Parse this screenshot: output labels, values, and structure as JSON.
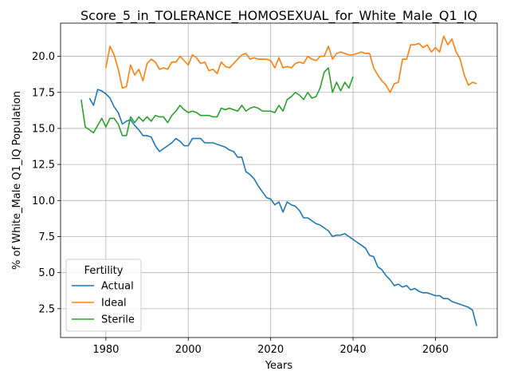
{
  "chart_data": {
    "type": "line",
    "title": "Score_5_in_TOLERANCE_HOMOSEXUAL_for_White_Male_Q1_IQ",
    "xlabel": "Years",
    "ylabel": "% of White_Male Q1_IQ Population",
    "xlim": [
      1969,
      2075
    ],
    "ylim": [
      0.5,
      22.3
    ],
    "xticks": [
      1980,
      2000,
      2020,
      2040,
      2060
    ],
    "yticks": [
      2.5,
      5.0,
      7.5,
      10.0,
      12.5,
      15.0,
      17.5,
      20.0
    ],
    "grid": true,
    "legend": {
      "title": "Fertility",
      "position": "lower-left"
    },
    "series": [
      {
        "name": "Actual",
        "color": "#1f77b4",
        "points": [
          [
            1976,
            17.1
          ],
          [
            1977,
            16.6
          ],
          [
            1978,
            17.7
          ],
          [
            1979,
            17.6
          ],
          [
            1980,
            17.4
          ],
          [
            1981,
            17.1
          ],
          [
            1982,
            16.5
          ],
          [
            1983,
            16.1
          ],
          [
            1984,
            15.3
          ],
          [
            1985,
            15.5
          ],
          [
            1986,
            15.6
          ],
          [
            1987,
            15.2
          ],
          [
            1988,
            14.9
          ],
          [
            1989,
            14.5
          ],
          [
            1990,
            14.5
          ],
          [
            1991,
            14.4
          ],
          [
            1992,
            13.8
          ],
          [
            1993,
            13.4
          ],
          [
            1994,
            13.6
          ],
          [
            1995,
            13.8
          ],
          [
            1996,
            14.0
          ],
          [
            1997,
            14.3
          ],
          [
            1998,
            14.1
          ],
          [
            1999,
            13.8
          ],
          [
            2000,
            13.8
          ],
          [
            2001,
            14.3
          ],
          [
            2002,
            14.3
          ],
          [
            2003,
            14.3
          ],
          [
            2004,
            14.0
          ],
          [
            2005,
            14.0
          ],
          [
            2006,
            14.0
          ],
          [
            2007,
            13.9
          ],
          [
            2008,
            13.8
          ],
          [
            2009,
            13.7
          ],
          [
            2010,
            13.5
          ],
          [
            2011,
            13.4
          ],
          [
            2012,
            13.0
          ],
          [
            2013,
            13.0
          ],
          [
            2014,
            12.0
          ],
          [
            2015,
            11.8
          ],
          [
            2016,
            11.5
          ],
          [
            2017,
            11.0
          ],
          [
            2018,
            10.6
          ],
          [
            2019,
            10.2
          ],
          [
            2020,
            10.1
          ],
          [
            2021,
            9.7
          ],
          [
            2022,
            9.9
          ],
          [
            2023,
            9.2
          ],
          [
            2024,
            9.9
          ],
          [
            2025,
            9.7
          ],
          [
            2026,
            9.6
          ],
          [
            2027,
            9.3
          ],
          [
            2028,
            8.8
          ],
          [
            2029,
            8.8
          ],
          [
            2030,
            8.6
          ],
          [
            2031,
            8.4
          ],
          [
            2032,
            8.3
          ],
          [
            2033,
            8.1
          ],
          [
            2034,
            7.9
          ],
          [
            2035,
            7.5
          ],
          [
            2036,
            7.6
          ],
          [
            2037,
            7.6
          ],
          [
            2038,
            7.7
          ],
          [
            2039,
            7.5
          ],
          [
            2040,
            7.3
          ],
          [
            2041,
            7.1
          ],
          [
            2042,
            6.9
          ],
          [
            2043,
            6.7
          ],
          [
            2044,
            6.2
          ],
          [
            2045,
            6.1
          ],
          [
            2046,
            5.4
          ],
          [
            2047,
            5.2
          ],
          [
            2048,
            4.8
          ],
          [
            2049,
            4.5
          ],
          [
            2050,
            4.1
          ],
          [
            2051,
            4.2
          ],
          [
            2052,
            4.0
          ],
          [
            2053,
            4.1
          ],
          [
            2054,
            3.8
          ],
          [
            2055,
            3.9
          ],
          [
            2056,
            3.7
          ],
          [
            2057,
            3.6
          ],
          [
            2058,
            3.6
          ],
          [
            2059,
            3.5
          ],
          [
            2060,
            3.4
          ],
          [
            2061,
            3.4
          ],
          [
            2062,
            3.2
          ],
          [
            2063,
            3.2
          ],
          [
            2064,
            3.0
          ],
          [
            2065,
            2.9
          ],
          [
            2066,
            2.8
          ],
          [
            2067,
            2.7
          ],
          [
            2068,
            2.6
          ],
          [
            2069,
            2.4
          ],
          [
            2070,
            1.3
          ]
        ]
      },
      {
        "name": "Ideal",
        "color": "#ff7f0e",
        "points": [
          [
            1980,
            19.2
          ],
          [
            1981,
            20.7
          ],
          [
            1982,
            20.1
          ],
          [
            1983,
            19.1
          ],
          [
            1984,
            17.8
          ],
          [
            1985,
            17.9
          ],
          [
            1986,
            19.4
          ],
          [
            1987,
            18.7
          ],
          [
            1988,
            19.1
          ],
          [
            1989,
            18.3
          ],
          [
            1990,
            19.5
          ],
          [
            1991,
            19.8
          ],
          [
            1992,
            19.6
          ],
          [
            1993,
            19.1
          ],
          [
            1994,
            19.2
          ],
          [
            1995,
            19.1
          ],
          [
            1996,
            19.6
          ],
          [
            1997,
            19.6
          ],
          [
            1998,
            20.0
          ],
          [
            1999,
            19.7
          ],
          [
            2000,
            19.4
          ],
          [
            2001,
            20.1
          ],
          [
            2002,
            19.9
          ],
          [
            2003,
            19.5
          ],
          [
            2004,
            19.6
          ],
          [
            2005,
            19.0
          ],
          [
            2006,
            19.1
          ],
          [
            2007,
            18.8
          ],
          [
            2008,
            19.6
          ],
          [
            2009,
            19.3
          ],
          [
            2010,
            19.2
          ],
          [
            2011,
            19.5
          ],
          [
            2012,
            19.8
          ],
          [
            2013,
            20.1
          ],
          [
            2014,
            20.2
          ],
          [
            2015,
            19.8
          ],
          [
            2016,
            19.9
          ],
          [
            2017,
            19.8
          ],
          [
            2018,
            19.8
          ],
          [
            2019,
            19.8
          ],
          [
            2020,
            19.7
          ],
          [
            2021,
            19.2
          ],
          [
            2022,
            19.9
          ],
          [
            2023,
            19.2
          ],
          [
            2024,
            19.3
          ],
          [
            2025,
            19.2
          ],
          [
            2026,
            19.5
          ],
          [
            2027,
            19.6
          ],
          [
            2028,
            19.5
          ],
          [
            2029,
            20.0
          ],
          [
            2030,
            19.8
          ],
          [
            2031,
            19.7
          ],
          [
            2032,
            20.0
          ],
          [
            2033,
            20.0
          ],
          [
            2034,
            20.7
          ],
          [
            2035,
            19.8
          ],
          [
            2036,
            20.2
          ],
          [
            2037,
            20.3
          ],
          [
            2038,
            20.2
          ],
          [
            2039,
            20.1
          ],
          [
            2040,
            20.1
          ],
          [
            2041,
            20.2
          ],
          [
            2042,
            20.3
          ],
          [
            2043,
            20.2
          ],
          [
            2044,
            20.2
          ],
          [
            2045,
            19.2
          ],
          [
            2046,
            18.7
          ],
          [
            2047,
            18.3
          ],
          [
            2048,
            18.0
          ],
          [
            2049,
            17.5
          ],
          [
            2050,
            18.1
          ],
          [
            2051,
            18.2
          ],
          [
            2052,
            19.8
          ],
          [
            2053,
            19.8
          ],
          [
            2054,
            20.8
          ],
          [
            2055,
            20.8
          ],
          [
            2056,
            20.9
          ],
          [
            2057,
            20.6
          ],
          [
            2058,
            20.8
          ],
          [
            2059,
            20.3
          ],
          [
            2060,
            20.6
          ],
          [
            2061,
            20.3
          ],
          [
            2062,
            21.4
          ],
          [
            2063,
            20.8
          ],
          [
            2064,
            21.2
          ],
          [
            2065,
            20.3
          ],
          [
            2066,
            19.8
          ],
          [
            2067,
            18.7
          ],
          [
            2068,
            18.0
          ],
          [
            2069,
            18.2
          ],
          [
            2070,
            18.1
          ]
        ]
      },
      {
        "name": "Sterile",
        "color": "#2ca02c",
        "points": [
          [
            1974,
            17.0
          ],
          [
            1975,
            15.1
          ],
          [
            1976,
            14.9
          ],
          [
            1977,
            14.7
          ],
          [
            1978,
            15.2
          ],
          [
            1979,
            15.7
          ],
          [
            1980,
            15.1
          ],
          [
            1981,
            15.7
          ],
          [
            1982,
            15.7
          ],
          [
            1983,
            15.3
          ],
          [
            1984,
            14.5
          ],
          [
            1985,
            14.5
          ],
          [
            1986,
            15.8
          ],
          [
            1987,
            15.4
          ],
          [
            1988,
            15.8
          ],
          [
            1989,
            15.5
          ],
          [
            1990,
            15.8
          ],
          [
            1991,
            15.5
          ],
          [
            1992,
            15.9
          ],
          [
            1993,
            15.8
          ],
          [
            1994,
            15.8
          ],
          [
            1995,
            15.4
          ],
          [
            1996,
            15.9
          ],
          [
            1997,
            16.2
          ],
          [
            1998,
            16.6
          ],
          [
            1999,
            16.3
          ],
          [
            2000,
            16.1
          ],
          [
            2001,
            16.2
          ],
          [
            2002,
            16.1
          ],
          [
            2003,
            15.9
          ],
          [
            2004,
            15.9
          ],
          [
            2005,
            15.9
          ],
          [
            2006,
            15.8
          ],
          [
            2007,
            15.8
          ],
          [
            2008,
            16.4
          ],
          [
            2009,
            16.3
          ],
          [
            2010,
            16.4
          ],
          [
            2011,
            16.3
          ],
          [
            2012,
            16.2
          ],
          [
            2013,
            16.6
          ],
          [
            2014,
            16.2
          ],
          [
            2015,
            16.4
          ],
          [
            2016,
            16.5
          ],
          [
            2017,
            16.4
          ],
          [
            2018,
            16.2
          ],
          [
            2019,
            16.2
          ],
          [
            2020,
            16.2
          ],
          [
            2021,
            16.1
          ],
          [
            2022,
            16.6
          ],
          [
            2023,
            16.2
          ],
          [
            2024,
            17.0
          ],
          [
            2025,
            17.2
          ],
          [
            2026,
            17.5
          ],
          [
            2027,
            17.3
          ],
          [
            2028,
            17.0
          ],
          [
            2029,
            17.5
          ],
          [
            2030,
            17.1
          ],
          [
            2031,
            17.2
          ],
          [
            2032,
            17.8
          ],
          [
            2033,
            18.9
          ],
          [
            2034,
            19.2
          ],
          [
            2035,
            17.5
          ],
          [
            2036,
            18.2
          ],
          [
            2037,
            17.6
          ],
          [
            2038,
            18.2
          ],
          [
            2039,
            17.8
          ],
          [
            2040,
            18.6
          ]
        ]
      }
    ]
  }
}
